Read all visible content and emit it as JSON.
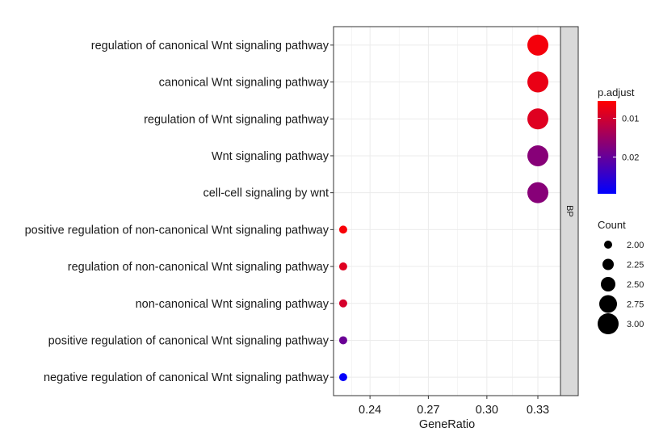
{
  "chart_data": {
    "type": "scatter",
    "xlabel": "GeneRatio",
    "facet_label": "BP",
    "xlim": [
      0.2167,
      0.3462
    ],
    "x_ticks": [
      {
        "value": 0.2375,
        "label": "0.24"
      },
      {
        "value": 0.2708,
        "label": "0.27"
      },
      {
        "value": 0.3042,
        "label": "0.30"
      },
      {
        "value": 0.3333,
        "label": "0.33"
      }
    ],
    "grid": true,
    "legend_position": "right",
    "points": [
      {
        "term": "regulation of canonical Wnt signaling pathway",
        "gene_ratio": 0.3333,
        "count": 3,
        "p_adjust": 0.0065
      },
      {
        "term": "canonical Wnt signaling pathway",
        "gene_ratio": 0.3333,
        "count": 3,
        "p_adjust": 0.0075
      },
      {
        "term": "regulation of Wnt signaling pathway",
        "gene_ratio": 0.3333,
        "count": 3,
        "p_adjust": 0.0085
      },
      {
        "term": "Wnt signaling pathway",
        "gene_ratio": 0.3333,
        "count": 3,
        "p_adjust": 0.0168
      },
      {
        "term": "cell-cell signaling by wnt",
        "gene_ratio": 0.3333,
        "count": 3,
        "p_adjust": 0.0168
      },
      {
        "term": "positive regulation of non-canonical Wnt signaling pathway",
        "gene_ratio": 0.2222,
        "count": 2,
        "p_adjust": 0.0062
      },
      {
        "term": "regulation of non-canonical Wnt signaling pathway",
        "gene_ratio": 0.2222,
        "count": 2,
        "p_adjust": 0.0085
      },
      {
        "term": "non-canonical Wnt signaling pathway",
        "gene_ratio": 0.2222,
        "count": 2,
        "p_adjust": 0.0095
      },
      {
        "term": "positive regulation of canonical Wnt signaling pathway",
        "gene_ratio": 0.2222,
        "count": 2,
        "p_adjust": 0.0195
      },
      {
        "term": "negative regulation of canonical Wnt signaling pathway",
        "gene_ratio": 0.2222,
        "count": 2,
        "p_adjust": 0.029
      }
    ],
    "color_legend": {
      "title": "p.adjust",
      "range": [
        0.0055,
        0.0295
      ],
      "low_color": "#FF0000",
      "high_color": "#0000FF",
      "ticks": [
        {
          "value": 0.01,
          "label": "0.01"
        },
        {
          "value": 0.02,
          "label": "0.02"
        }
      ]
    },
    "size_legend": {
      "title": "Count",
      "entries": [
        {
          "value": 2.0,
          "label": "2.00"
        },
        {
          "value": 2.25,
          "label": "2.25"
        },
        {
          "value": 2.5,
          "label": "2.50"
        },
        {
          "value": 2.75,
          "label": "2.75"
        },
        {
          "value": 3.0,
          "label": "3.00"
        }
      ]
    }
  }
}
